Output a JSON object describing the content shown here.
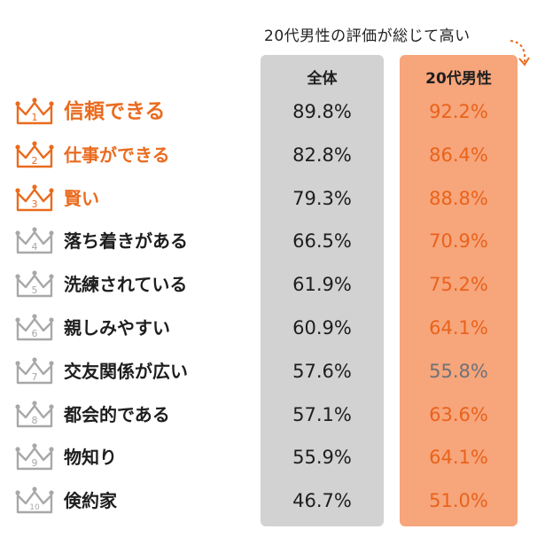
{
  "callout_text": "20代男性の評価が総じて高い",
  "chart_data": {
    "type": "table",
    "columns": [
      "全体",
      "20代男性"
    ],
    "rows": [
      {
        "rank": "1",
        "label": "信頼できる",
        "overall": "89.8%",
        "twenties": "92.2%"
      },
      {
        "rank": "2",
        "label": "仕事ができる",
        "overall": "82.8%",
        "twenties": "86.4%"
      },
      {
        "rank": "3",
        "label": "賢い",
        "overall": "79.3%",
        "twenties": "88.8%"
      },
      {
        "rank": "4",
        "label": "落ち着きがある",
        "overall": "66.5%",
        "twenties": "70.9%"
      },
      {
        "rank": "5",
        "label": "洗練されている",
        "overall": "61.9%",
        "twenties": "75.2%"
      },
      {
        "rank": "6",
        "label": "親しみやすい",
        "overall": "60.9%",
        "twenties": "64.1%"
      },
      {
        "rank": "7",
        "label": "交友関係が広い",
        "overall": "57.6%",
        "twenties": "55.8%"
      },
      {
        "rank": "8",
        "label": "都会的である",
        "overall": "57.1%",
        "twenties": "63.6%"
      },
      {
        "rank": "9",
        "label": "物知り",
        "overall": "55.9%",
        "twenties": "64.1%"
      },
      {
        "rank": "10",
        "label": "倹約家",
        "overall": "46.7%",
        "twenties": "51.0%"
      }
    ]
  },
  "colors": {
    "highlight_orange": "#ea6b1e",
    "twenties_column_bg": "#f7a57b",
    "overall_column_bg": "#d2d2d2",
    "below_overall_gray": "#6e7278",
    "crown_top3": "#ea6b1e",
    "crown_other": "#a8a8a8"
  }
}
